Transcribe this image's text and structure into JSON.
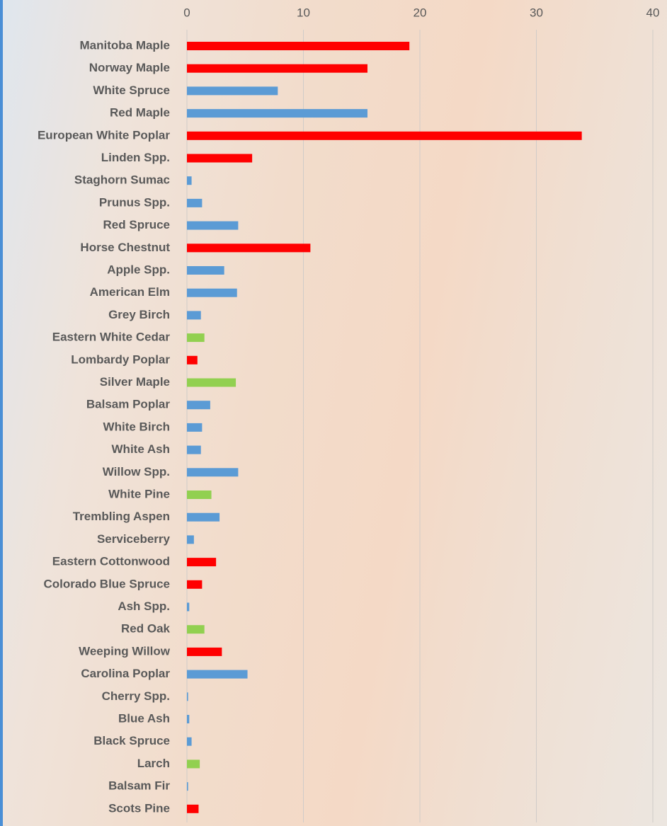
{
  "chart_data": {
    "type": "bar",
    "orientation": "horizontal",
    "categories": [
      "Manitoba Maple",
      "Norway Maple",
      "White Spruce",
      "Red Maple",
      "European White Poplar",
      "Linden Spp.",
      "Staghorn Sumac",
      "Prunus Spp.",
      "Red Spruce",
      "Horse Chestnut",
      "Apple Spp.",
      "American Elm",
      "Grey Birch",
      "Eastern White Cedar",
      "Lombardy Poplar",
      "Silver Maple",
      "Balsam Poplar",
      "White Birch",
      "White Ash",
      "Willow Spp.",
      "White Pine",
      "Trembling Aspen",
      "Serviceberry",
      "Eastern Cottonwood",
      "Colorado Blue Spruce",
      "Ash Spp.",
      "Red Oak",
      "Weeping Willow",
      "Carolina Poplar",
      "Cherry Spp.",
      "Blue Ash",
      "Black Spruce",
      "Larch",
      "Balsam Fir",
      "Scots Pine"
    ],
    "values": [
      19.1,
      15.5,
      7.8,
      15.5,
      33.9,
      5.6,
      0.4,
      1.3,
      4.4,
      10.6,
      3.2,
      4.3,
      1.2,
      1.5,
      0.9,
      4.2,
      2.0,
      1.3,
      1.2,
      4.4,
      2.1,
      2.8,
      0.6,
      2.5,
      1.3,
      0.2,
      1.5,
      3.0,
      5.2,
      0.1,
      0.2,
      0.4,
      1.1,
      0.1,
      1.0
    ],
    "colors": [
      "#ff0000",
      "#ff0000",
      "#5b9bd5",
      "#5b9bd5",
      "#ff0000",
      "#ff0000",
      "#5b9bd5",
      "#5b9bd5",
      "#5b9bd5",
      "#ff0000",
      "#5b9bd5",
      "#5b9bd5",
      "#5b9bd5",
      "#92d050",
      "#ff0000",
      "#92d050",
      "#5b9bd5",
      "#5b9bd5",
      "#5b9bd5",
      "#5b9bd5",
      "#92d050",
      "#5b9bd5",
      "#5b9bd5",
      "#ff0000",
      "#ff0000",
      "#5b9bd5",
      "#92d050",
      "#ff0000",
      "#5b9bd5",
      "#5b9bd5",
      "#5b9bd5",
      "#5b9bd5",
      "#92d050",
      "#5b9bd5",
      "#ff0000"
    ],
    "xlim": [
      0,
      40
    ],
    "xticks": [
      0,
      10,
      20,
      30,
      40
    ],
    "grid": true
  }
}
